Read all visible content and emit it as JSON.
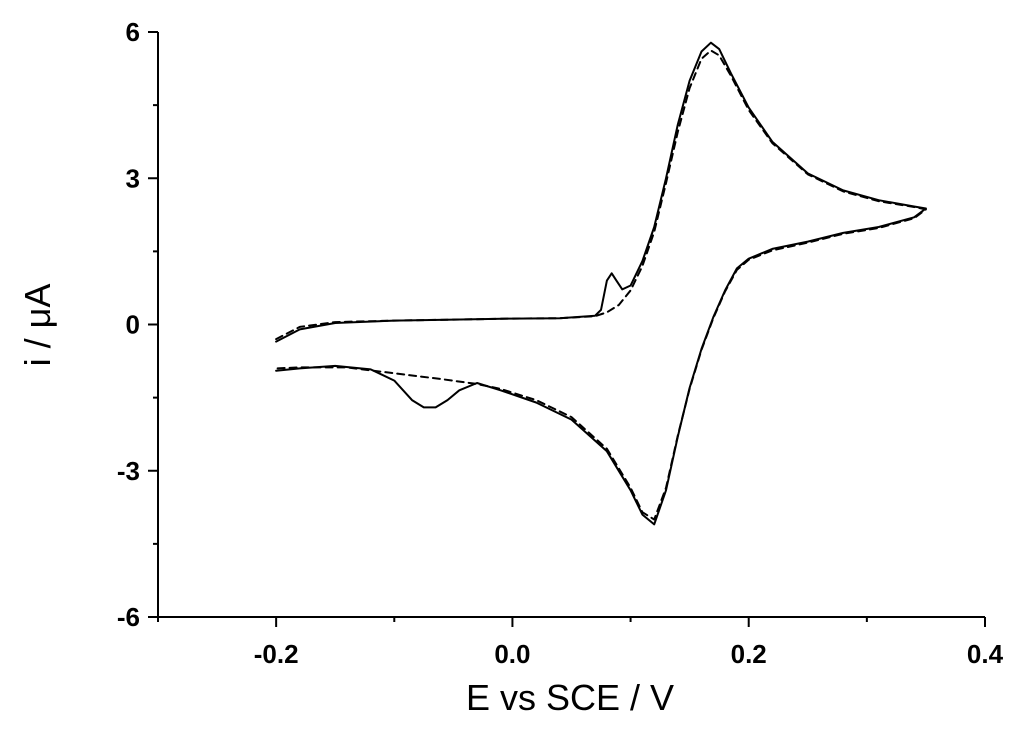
{
  "chart_data": {
    "type": "line",
    "xlabel": "E vs SCE / V",
    "ylabel": "i / μA",
    "xlim": [
      -0.3,
      0.4
    ],
    "ylim": [
      -6,
      6
    ],
    "x_ticks": [
      -0.2,
      0.0,
      0.2,
      0.4
    ],
    "x_tick_labels": [
      "-0.2",
      "0.0",
      "0.2",
      "0.4"
    ],
    "y_ticks": [
      -6,
      -3,
      0,
      3,
      6
    ],
    "y_tick_labels": [
      "-6",
      "-3",
      "0",
      "3",
      "6"
    ],
    "grid": false,
    "legend": "none",
    "series": [
      {
        "style": "solid",
        "color": "#000000",
        "points": [
          [
            -0.2,
            -0.35
          ],
          [
            -0.18,
            -0.1
          ],
          [
            -0.15,
            0.03
          ],
          [
            -0.1,
            0.08
          ],
          [
            -0.05,
            0.1
          ],
          [
            0.0,
            0.12
          ],
          [
            0.04,
            0.13
          ],
          [
            0.07,
            0.18
          ],
          [
            0.075,
            0.3
          ],
          [
            0.08,
            0.9
          ],
          [
            0.084,
            1.05
          ],
          [
            0.088,
            0.9
          ],
          [
            0.093,
            0.72
          ],
          [
            0.1,
            0.8
          ],
          [
            0.11,
            1.3
          ],
          [
            0.12,
            2.0
          ],
          [
            0.13,
            3.0
          ],
          [
            0.14,
            4.1
          ],
          [
            0.15,
            5.0
          ],
          [
            0.16,
            5.6
          ],
          [
            0.168,
            5.78
          ],
          [
            0.175,
            5.65
          ],
          [
            0.185,
            5.15
          ],
          [
            0.2,
            4.45
          ],
          [
            0.22,
            3.75
          ],
          [
            0.25,
            3.1
          ],
          [
            0.28,
            2.75
          ],
          [
            0.31,
            2.55
          ],
          [
            0.34,
            2.42
          ],
          [
            0.35,
            2.38
          ],
          [
            0.34,
            2.2
          ],
          [
            0.31,
            2.0
          ],
          [
            0.28,
            1.88
          ],
          [
            0.25,
            1.7
          ],
          [
            0.22,
            1.55
          ],
          [
            0.2,
            1.35
          ],
          [
            0.19,
            1.15
          ],
          [
            0.18,
            0.7
          ],
          [
            0.17,
            0.15
          ],
          [
            0.16,
            -0.5
          ],
          [
            0.15,
            -1.3
          ],
          [
            0.14,
            -2.3
          ],
          [
            0.13,
            -3.4
          ],
          [
            0.12,
            -4.1
          ],
          [
            0.11,
            -3.9
          ],
          [
            0.1,
            -3.4
          ],
          [
            0.08,
            -2.6
          ],
          [
            0.05,
            -1.95
          ],
          [
            0.02,
            -1.6
          ],
          [
            -0.01,
            -1.35
          ],
          [
            -0.03,
            -1.2
          ],
          [
            -0.045,
            -1.35
          ],
          [
            -0.055,
            -1.55
          ],
          [
            -0.065,
            -1.7
          ],
          [
            -0.075,
            -1.7
          ],
          [
            -0.085,
            -1.55
          ],
          [
            -0.1,
            -1.15
          ],
          [
            -0.12,
            -0.92
          ],
          [
            -0.15,
            -0.85
          ],
          [
            -0.18,
            -0.9
          ],
          [
            -0.2,
            -0.95
          ]
        ]
      },
      {
        "style": "dashed",
        "color": "#000000",
        "points": [
          [
            -0.2,
            -0.3
          ],
          [
            -0.18,
            -0.05
          ],
          [
            -0.15,
            0.05
          ],
          [
            -0.1,
            0.08
          ],
          [
            -0.05,
            0.1
          ],
          [
            0.0,
            0.12
          ],
          [
            0.04,
            0.13
          ],
          [
            0.07,
            0.17
          ],
          [
            0.08,
            0.25
          ],
          [
            0.09,
            0.4
          ],
          [
            0.1,
            0.7
          ],
          [
            0.11,
            1.2
          ],
          [
            0.12,
            1.9
          ],
          [
            0.13,
            2.9
          ],
          [
            0.14,
            3.95
          ],
          [
            0.15,
            4.85
          ],
          [
            0.16,
            5.45
          ],
          [
            0.168,
            5.62
          ],
          [
            0.175,
            5.52
          ],
          [
            0.185,
            5.1
          ],
          [
            0.2,
            4.4
          ],
          [
            0.22,
            3.72
          ],
          [
            0.25,
            3.08
          ],
          [
            0.28,
            2.73
          ],
          [
            0.31,
            2.53
          ],
          [
            0.34,
            2.41
          ],
          [
            0.35,
            2.36
          ],
          [
            0.34,
            2.18
          ],
          [
            0.31,
            1.98
          ],
          [
            0.28,
            1.86
          ],
          [
            0.25,
            1.68
          ],
          [
            0.22,
            1.52
          ],
          [
            0.2,
            1.33
          ],
          [
            0.19,
            1.12
          ],
          [
            0.18,
            0.68
          ],
          [
            0.17,
            0.13
          ],
          [
            0.16,
            -0.52
          ],
          [
            0.15,
            -1.32
          ],
          [
            0.14,
            -2.28
          ],
          [
            0.13,
            -3.35
          ],
          [
            0.12,
            -4.0
          ],
          [
            0.11,
            -3.85
          ],
          [
            0.1,
            -3.35
          ],
          [
            0.08,
            -2.55
          ],
          [
            0.05,
            -1.9
          ],
          [
            0.02,
            -1.55
          ],
          [
            -0.01,
            -1.32
          ],
          [
            -0.03,
            -1.22
          ],
          [
            -0.06,
            -1.12
          ],
          [
            -0.1,
            -1.0
          ],
          [
            -0.14,
            -0.88
          ],
          [
            -0.18,
            -0.88
          ],
          [
            -0.2,
            -0.9
          ]
        ]
      }
    ]
  }
}
